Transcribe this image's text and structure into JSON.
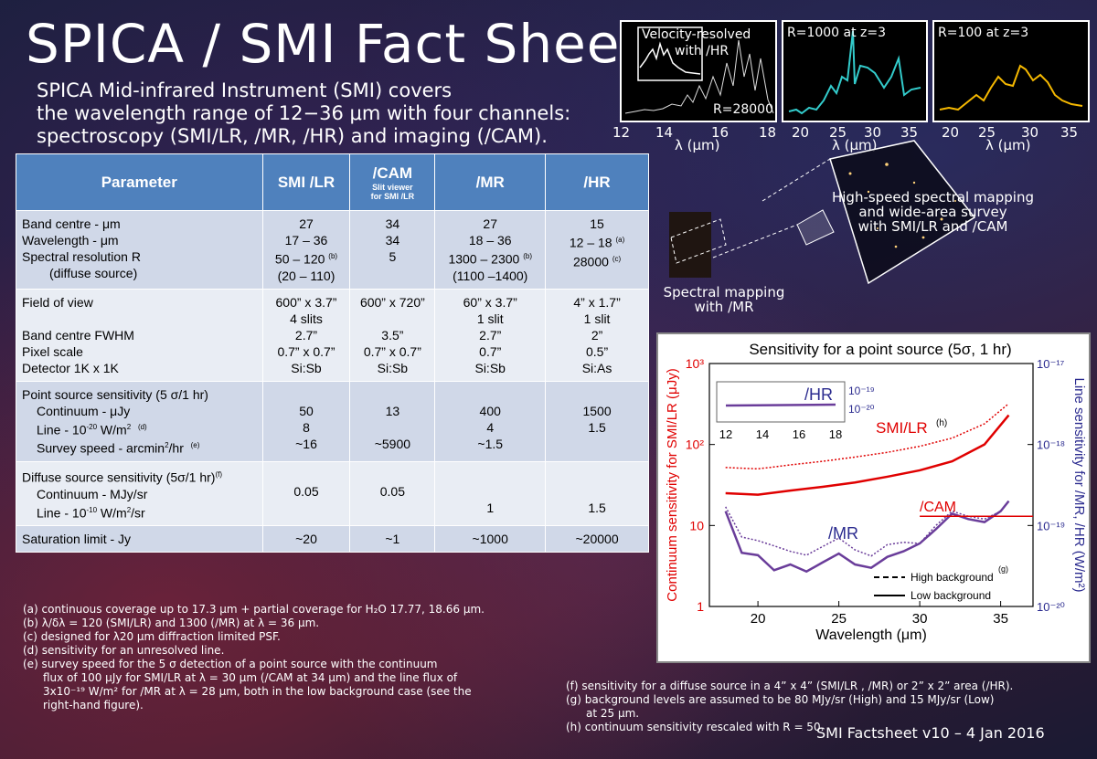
{
  "title": "SPICA / SMI Fact Sheet",
  "intro": {
    "line1": "SPICA Mid-infrared Instrument (SMI) covers",
    "line2": "the wavelength range of 12−36 μm with four channels:",
    "line3": "spectroscopy (SMI/LR, /MR, /HR) and imaging (/CAM)."
  },
  "table": {
    "headers": {
      "param": "Parameter",
      "lr": "SMI /LR",
      "cam": "/CAM",
      "cam_sub1": "Slit viewer",
      "cam_sub2": "for SMI /LR",
      "mr": "/MR",
      "hr": "/HR"
    },
    "r1": {
      "p1": "Band centre - μm",
      "p2": "Wavelength - μm",
      "p3": "Spectral resolution R",
      "p4": "(diffuse source)",
      "lr1": "27",
      "lr2": "17 – 36",
      "lr3": "50 – 120",
      "lr3s": "(b)",
      "lr4": "(20 – 110)",
      "cam1": "34",
      "cam2": "34",
      "cam3": "5",
      "mr1": "27",
      "mr2": "18 – 36",
      "mr3": "1300 – 2300",
      "mr3s": "(b)",
      "mr4": "(1100 –1400)",
      "hr1": "15",
      "hr2": "12 – 18",
      "hr2s": "(a)",
      "hr3": "28000",
      "hr3s": "(c)"
    },
    "r2": {
      "p1": "Field of view",
      "p2": "Band centre FWHM",
      "p3": "Pixel scale",
      "p4": "Detector 1K x 1K",
      "lr1": "600” x 3.7”",
      "lr1b": "4 slits",
      "lr2": "2.7”",
      "lr3": "0.7” x 0.7”",
      "lr4": "Si:Sb",
      "cam1": "600” x 720”",
      "cam2": "3.5”",
      "cam3": "0.7” x 0.7”",
      "cam4": "Si:Sb",
      "mr1": "60” x 3.7”",
      "mr1b": "1 slit",
      "mr2": "2.7”",
      "mr3": "0.7”",
      "mr4": "Si:Sb",
      "hr1": "4” x 1.7”",
      "hr1b": "1 slit",
      "hr2": "2”",
      "hr3": "0.5”",
      "hr4": "Si:As"
    },
    "r3": {
      "p1": "Point source sensitivity (5 σ/1 hr)",
      "p2": "Continuum - μJy",
      "p3a": "Line - 10",
      "p3b": "-20",
      "p3c": " W/m",
      "p3d": "2",
      "p3e": "(d)",
      "p4a": "Survey speed - arcmin",
      "p4b": "2",
      "p4c": "/hr",
      "p4d": "(e)",
      "lr2": "50",
      "lr3": "8",
      "lr4": "~16",
      "cam2": "13",
      "cam4": "~5900",
      "mr2": "400",
      "mr3": "4",
      "mr4": "~1.5",
      "hr2": "1500",
      "hr3": "1.5"
    },
    "r4": {
      "p1": "Diffuse source sensitivity (5σ/1 hr)",
      "p1s": "(f)",
      "p2": "Continuum - MJy/sr",
      "p3a": "Line - 10",
      "p3b": "-10",
      "p3c": "  W/m",
      "p3d": "2",
      "p3e": "/sr",
      "lr2": "0.05",
      "cam2": "0.05",
      "mr3": "1",
      "hr3": "1.5"
    },
    "r5": {
      "p1": "Saturation limit - Jy",
      "lr": "~20",
      "cam": "~1",
      "mr": "~1000",
      "hr": "~20000"
    }
  },
  "spectra": {
    "p1": {
      "label1": "Velocity-resolved",
      "label2": "with /HR",
      "res": "R=28000",
      "ticks": [
        "12",
        "14",
        "16",
        "18"
      ],
      "xlabel": "λ (μm)"
    },
    "p2": {
      "label": "R=1000 at z=3",
      "ticks": [
        "20",
        "25",
        "30",
        "35"
      ],
      "xlabel": "λ (μm)"
    },
    "p3": {
      "label": "R=100 at z=3",
      "ticks": [
        "20",
        "25",
        "30",
        "35"
      ],
      "xlabel": "λ (μm)"
    }
  },
  "image_labels": {
    "mapping_lr1": "High-speed spectral mapping",
    "mapping_lr2": "and wide-area survey",
    "mapping_lr3": "with SMI/LR and /CAM",
    "mapping_mr1": "Spectral mapping",
    "mapping_mr2": "with /MR"
  },
  "chart_data": {
    "type": "line",
    "title": "Sensitivity for a point source (5σ, 1 hr)",
    "xlabel": "Wavelength (μm)",
    "ylabel_left": "Continuum sensitivity for SMI/LR (μJy)",
    "ylabel_right": "Line sensitivity for /MR, /HR (W/m²)",
    "xlim": [
      17,
      37
    ],
    "ylim_left": [
      1,
      1000
    ],
    "ylim_right": [
      "10-20",
      "10-17"
    ],
    "x_ticks": [
      "20",
      "25",
      "30",
      "35"
    ],
    "y_ticks_left": [
      "1",
      "10",
      "10²",
      "10³"
    ],
    "y_ticks_right": [
      "10⁻²⁰",
      "10⁻¹⁹",
      "10⁻¹⁸",
      "10⁻¹⁷"
    ],
    "series": [
      {
        "name": "SMI/LR",
        "background": "high",
        "color": "#e00000",
        "x": [
          18,
          20,
          22,
          24,
          26,
          28,
          30,
          32,
          34,
          35.5
        ],
        "values": [
          52,
          50,
          56,
          62,
          70,
          80,
          95,
          120,
          180,
          320
        ]
      },
      {
        "name": "SMI/LR",
        "background": "low",
        "color": "#e00000",
        "x": [
          18,
          20,
          22,
          24,
          26,
          28,
          30,
          32,
          34,
          35.5
        ],
        "values": [
          25,
          24,
          27,
          30,
          34,
          40,
          48,
          62,
          100,
          230
        ]
      },
      {
        "name": "/MR",
        "background": "high",
        "color": "#6a3d9a",
        "x": [
          18,
          19,
          20,
          21,
          22,
          23,
          24,
          25,
          26,
          27,
          28,
          29,
          30,
          31,
          32,
          33,
          34,
          35,
          35.5
        ],
        "values": [
          17,
          7.2,
          6.5,
          5.6,
          4.8,
          4.3,
          5.5,
          7.0,
          5.0,
          4.2,
          5.8,
          6.2,
          6.0,
          10,
          15,
          13,
          12,
          15,
          20
        ]
      },
      {
        "name": "/MR",
        "background": "low",
        "color": "#6a3d9a",
        "x": [
          18,
          19,
          20,
          21,
          22,
          23,
          24,
          25,
          26,
          27,
          28,
          29,
          30,
          31,
          32,
          33,
          34,
          35,
          35.5
        ],
        "values": [
          15,
          4.6,
          4.3,
          2.8,
          3.3,
          2.7,
          3.5,
          4.5,
          3.3,
          3.0,
          4.1,
          4.8,
          6.0,
          9,
          14,
          12,
          11,
          15,
          20
        ]
      },
      {
        "name": "/CAM",
        "color": "#e00000",
        "x": [
          30,
          37
        ],
        "values": [
          13,
          13
        ]
      }
    ],
    "inset": {
      "label": "/HR",
      "x_ticks": [
        "12",
        "14",
        "16",
        "18"
      ],
      "y_ticks": [
        "10⁻¹⁹",
        "10⁻²⁰"
      ]
    },
    "annotations": {
      "lr": "SMI/LR",
      "lr_sup": "(h)",
      "mr": "/MR",
      "cam": "/CAM"
    },
    "legend": {
      "high": "High background",
      "high_sup": "(g)",
      "low": "Low background",
      "placement": "bottom-right"
    }
  },
  "notes": {
    "a": "(a) continuous coverage up to  17.3 μm + partial coverage for H₂O 17.77, 18.66 μm.",
    "b": "(b) λ/δλ = 120 (SMI/LR) and 1300 (/MR) at λ = 36 μm.",
    "c": "(c) designed for λ20 μm diffraction limited PSF.",
    "d": "(d) sensitivity for an unresolved line.",
    "e1": "(e) survey speed for the 5 σ detection of a point source with the continuum",
    "e2": "flux of 100 μJy for SMI/LR at λ = 30 μm (/CAM at 34 μm) and the line flux of",
    "e3": "3x10⁻¹⁹ W/m² for /MR at λ = 28 μm, both in the low background case (see the",
    "e4": "right-hand figure).",
    "f": "(f) sensitivity for a diffuse source in a 4” x 4” (SMI/LR , /MR) or 2” x 2” area (/HR).",
    "g1": "(g) background levels are assumed to be 80 MJy/sr (High) and 15 MJy/sr (Low)",
    "g2": "at 25 μm.",
    "h": "(h) continuum sensitivity  rescaled with R = 50."
  },
  "footer": "SMI Factsheet v10 – 4 Jan 2016"
}
